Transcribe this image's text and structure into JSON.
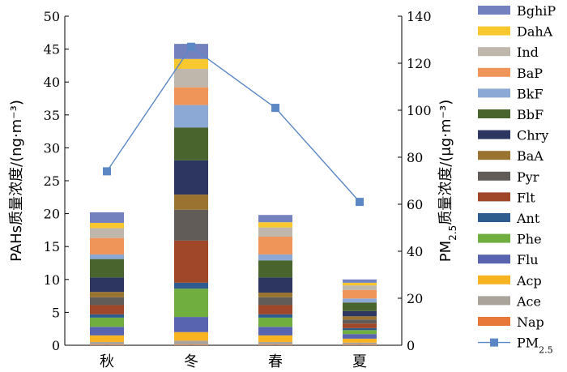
{
  "chart_data": {
    "type": "bar",
    "stacked": true,
    "categories": [
      "秋",
      "冬",
      "春",
      "夏"
    ],
    "ylabel": "PAHs质量浓度/(ng·m⁻³)",
    "y2label": "PM2.5质量浓度/(μg·m⁻³)",
    "ylim": [
      0,
      50
    ],
    "y2lim": [
      0,
      140
    ],
    "yticks": [
      "0",
      "5",
      "10",
      "15",
      "20",
      "25",
      "30",
      "35",
      "40",
      "45",
      "50"
    ],
    "y2ticks": [
      "0",
      "20",
      "40",
      "60",
      "80",
      "100",
      "120",
      "140"
    ],
    "grid": false,
    "legend_position": "right",
    "series": [
      {
        "name": "Nap",
        "color": "#E8773A",
        "values": [
          0.1,
          0.1,
          0.1,
          0.1
        ]
      },
      {
        "name": "Ace",
        "color": "#A9A39B",
        "values": [
          0.4,
          0.6,
          0.4,
          0.3
        ]
      },
      {
        "name": "Acp",
        "color": "#F7B320",
        "values": [
          1.0,
          1.3,
          1.0,
          0.6
        ]
      },
      {
        "name": "Flu",
        "color": "#5964B0",
        "values": [
          1.3,
          2.3,
          1.3,
          0.7
        ]
      },
      {
        "name": "Phe",
        "color": "#6FAE3F",
        "values": [
          1.4,
          4.3,
          1.4,
          0.6
        ]
      },
      {
        "name": "Ant",
        "color": "#2F5C8E",
        "values": [
          0.5,
          0.9,
          0.5,
          0.3
        ]
      },
      {
        "name": "Flt",
        "color": "#A0472A",
        "values": [
          1.4,
          6.4,
          1.4,
          0.7
        ]
      },
      {
        "name": "Pyr",
        "color": "#625C58",
        "values": [
          1.2,
          4.7,
          1.2,
          0.6
        ]
      },
      {
        "name": "BaA",
        "color": "#9A7330",
        "values": [
          0.8,
          2.3,
          0.7,
          0.5
        ]
      },
      {
        "name": "Chry",
        "color": "#2D3561",
        "values": [
          2.2,
          5.2,
          2.3,
          0.8
        ]
      },
      {
        "name": "BbF",
        "color": "#49642D",
        "values": [
          2.8,
          5.0,
          2.6,
          1.3
        ]
      },
      {
        "name": "BkF",
        "color": "#8CA9D6",
        "values": [
          0.7,
          3.4,
          0.9,
          0.6
        ]
      },
      {
        "name": "BaP",
        "color": "#F0955A",
        "values": [
          2.5,
          2.7,
          2.7,
          1.3
        ]
      },
      {
        "name": "Ind",
        "color": "#BFB7AC",
        "values": [
          1.5,
          2.8,
          1.4,
          0.7
        ]
      },
      {
        "name": "DahA",
        "color": "#F9C72E",
        "values": [
          0.8,
          1.5,
          0.8,
          0.4
        ]
      },
      {
        "name": "BghiP",
        "color": "#7381BF",
        "values": [
          1.6,
          2.3,
          1.1,
          0.5
        ]
      }
    ],
    "line_series": {
      "name": "PM2.5",
      "axis": "right",
      "color": "#5B87C5",
      "values": [
        74,
        127,
        101,
        61
      ]
    }
  }
}
